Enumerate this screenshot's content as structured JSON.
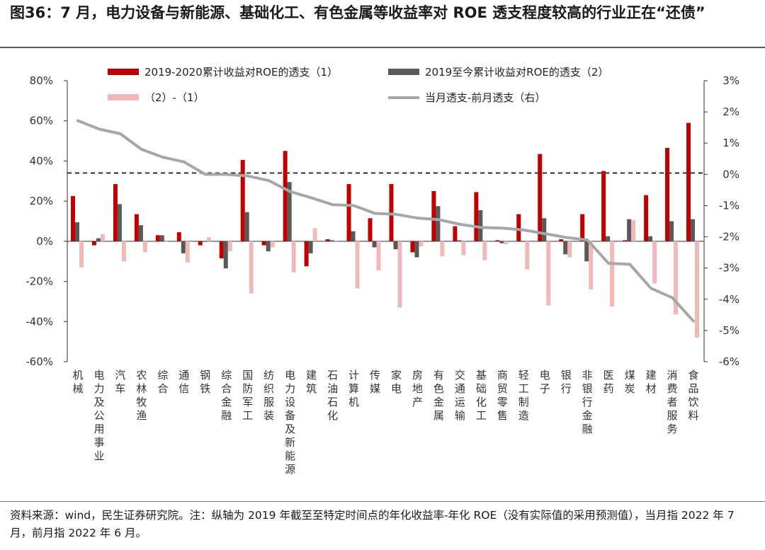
{
  "header": {
    "title": "图36：7 月，电力设备与新能源、基础化工、有色金属等收益率对 ROE 透支程度较高的行业正在“还债”"
  },
  "footer": {
    "source": "资料来源：wind，民生证券研究院。注：纵轴为 2019 年截至至特定时间点的年化收益率-年化 ROE（没有实际值的采用预测值），当月指 2022 年 7 月，前月指 2022 年 6 月。"
  },
  "colors": {
    "series1": "#c00000",
    "series2": "#595959",
    "series3": "#f2b8b8",
    "series4": "#a6a6a6",
    "ref_line": "#000000"
  },
  "chart_data": {
    "type": "bar",
    "categories": [
      "机械",
      "电力及公用事业",
      "汽车",
      "农林牧渔",
      "综合",
      "通信",
      "钢铁",
      "综合金融",
      "国防军工",
      "纺织服装",
      "电力设备及新能源",
      "建筑",
      "石油石化",
      "计算机",
      "传媒",
      "家电",
      "房地产",
      "有色金属",
      "交通运输",
      "基础化工",
      "商贸零售",
      "轻工制造",
      "电子",
      "银行",
      "非银行金融",
      "医药",
      "煤炭",
      "建材",
      "消费者服务",
      "食品饮料"
    ],
    "series": [
      {
        "name": "2019-2020累计收益对ROE的透支（1）",
        "axis": "left",
        "type": "bar",
        "values": [
          22.5,
          -2,
          28.5,
          13.5,
          3,
          4.5,
          -2,
          -8.5,
          40.5,
          -2,
          45,
          -12.5,
          1,
          28.5,
          11.5,
          28.5,
          -5.5,
          25,
          7.5,
          24.5,
          0.5,
          13.5,
          43.5,
          1,
          13.5,
          35,
          0.5,
          23,
          46.5,
          59
        ]
      },
      {
        "name": "2019至今累计收益对ROE的透支（2）",
        "axis": "left",
        "type": "bar",
        "values": [
          9.5,
          1.5,
          18.5,
          8,
          3,
          -6,
          0,
          -13.5,
          14.5,
          -5,
          29.5,
          -6,
          0.5,
          5,
          -3,
          -4,
          -8,
          17.5,
          0.5,
          15.5,
          -1,
          0,
          11.5,
          -6.5,
          -10,
          2.5,
          11,
          2.5,
          10,
          11
        ]
      },
      {
        "name": "（2）-（1）",
        "axis": "left",
        "type": "bar",
        "values": [
          -13,
          3.5,
          -10,
          -5.5,
          0,
          -10.5,
          2,
          -5,
          -26,
          -3,
          -15.5,
          6.5,
          -0.5,
          -23.5,
          -14.5,
          -33,
          -2.5,
          -7.5,
          -7,
          -9.5,
          -1.5,
          -14,
          -32,
          -8,
          -24,
          -32.5,
          10.5,
          -21,
          -36.5,
          -48
        ]
      },
      {
        "name": "当月透支-前月透支（右）",
        "axis": "right",
        "type": "line",
        "values": [
          1.72,
          1.45,
          1.3,
          0.8,
          0.55,
          0.4,
          0.0,
          0.0,
          -0.05,
          -0.2,
          -0.55,
          -0.75,
          -0.97,
          -1.0,
          -1.25,
          -1.28,
          -1.4,
          -1.45,
          -1.6,
          -1.7,
          -1.72,
          -1.78,
          -1.9,
          -2.02,
          -2.1,
          -2.85,
          -2.88,
          -3.65,
          -3.95,
          -4.7
        ]
      }
    ],
    "reference_line": {
      "axis": "left",
      "value": 34,
      "style": "dashed"
    },
    "ylim": [
      -60,
      80
    ],
    "y2lim": [
      -6,
      3
    ],
    "yticks": [
      "80%",
      "60%",
      "40%",
      "20%",
      "0%",
      "-20%",
      "-40%",
      "-60%"
    ],
    "y2ticks": [
      "3%",
      "2%",
      "1%",
      "0%",
      "-1%",
      "-2%",
      "-3%",
      "-4%",
      "-5%",
      "-6%"
    ],
    "legend_position": "top",
    "grid": false
  }
}
